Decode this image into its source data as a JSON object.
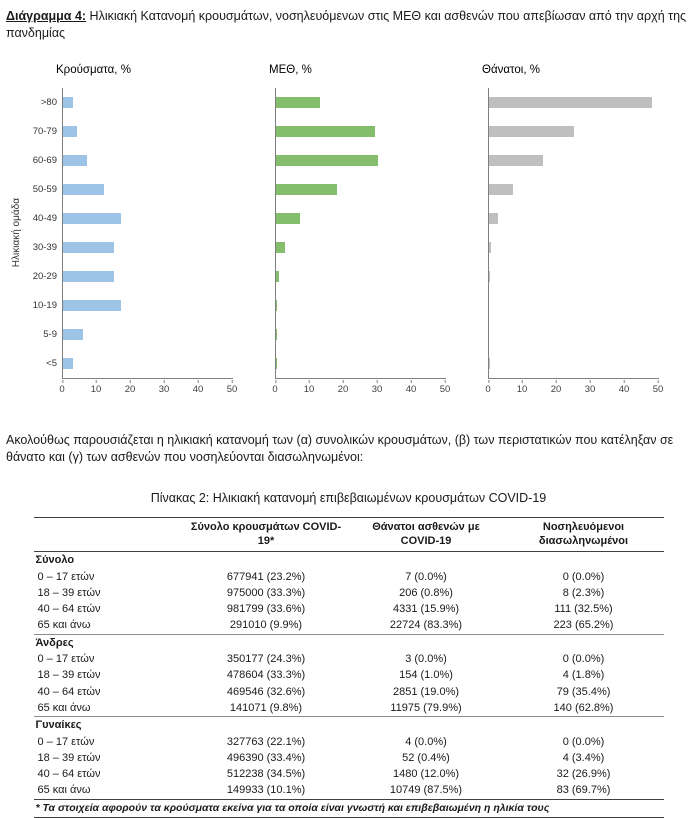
{
  "caption": {
    "label": "Διάγραμμα 4:",
    "text": " Ηλικιακή Κατανομή κρουσμάτων, νοσηλευόμενων στις ΜΕΘ και ασθενών που απεβίωσαν από την αρχή της πανδημίας"
  },
  "charts": {
    "y_axis_label": "Ηλικιακή ομάδα",
    "age_groups": [
      ">80",
      "70-79",
      "60-69",
      "50-59",
      "40-49",
      "30-39",
      "20-29",
      "10-19",
      "5-9",
      "<5"
    ],
    "x_ticks": [
      0,
      10,
      20,
      30,
      40,
      50
    ],
    "xlim": [
      0,
      50
    ]
  },
  "chart_data": [
    {
      "type": "bar",
      "orientation": "horizontal",
      "title": "Κρούσματα, %",
      "color": "#9DC3E6",
      "categories": [
        ">80",
        "70-79",
        "60-69",
        "50-59",
        "40-49",
        "30-39",
        "20-29",
        "10-19",
        "5-9",
        "<5"
      ],
      "values": [
        3,
        4,
        7,
        12,
        17,
        15,
        15,
        17,
        6,
        3
      ],
      "xlabel": "%",
      "ylabel": "Ηλικιακή ομάδα",
      "xlim": [
        0,
        50
      ],
      "grid": false,
      "legend": false
    },
    {
      "type": "bar",
      "orientation": "horizontal",
      "title": "ΜΕΘ, %",
      "color": "#84BE6C",
      "categories": [
        ">80",
        "70-79",
        "60-69",
        "50-59",
        "40-49",
        "30-39",
        "20-29",
        "10-19",
        "5-9",
        "<5"
      ],
      "values": [
        13,
        29,
        30,
        18,
        7,
        2.5,
        1,
        0.4,
        0.2,
        0.4
      ],
      "xlabel": "%",
      "ylabel": "Ηλικιακή ομάδα",
      "xlim": [
        0,
        50
      ],
      "grid": false,
      "legend": false
    },
    {
      "type": "bar",
      "orientation": "horizontal",
      "title": "Θάνατοι, %",
      "color": "#BFBFBF",
      "categories": [
        ">80",
        "70-79",
        "60-69",
        "50-59",
        "40-49",
        "30-39",
        "20-29",
        "10-19",
        "5-9",
        "<5"
      ],
      "values": [
        48,
        25,
        16,
        7,
        2.5,
        0.7,
        0.2,
        0,
        0,
        0.2
      ],
      "xlabel": "%",
      "ylabel": "Ηλικιακή ομάδα",
      "xlim": [
        0,
        50
      ],
      "grid": false,
      "legend": false
    }
  ],
  "paragraph": "Ακολούθως παρουσιάζεται η ηλικιακή κατανομή των (α) συνολικών κρουσμάτων, (β) των περιστατικών που κατέληξαν σε θάνατο και (γ) των ασθενών που νοσηλεύονται διασωληνωμένοι:",
  "table": {
    "title": "Πίνακας 2: Ηλικιακή κατανομή επιβεβαιωμένων κρουσμάτων COVID-19",
    "columns": [
      "Σύνολο κρουσμάτων COVID-19*",
      "Θάνατοι ασθενών με COVID-19",
      "Νοσηλευόμενοι διασωληνωμένοι"
    ],
    "sections": [
      {
        "label": "Σύνολο",
        "rows": [
          {
            "age": "0 – 17 ετών",
            "cases": "677941 (23.2%)",
            "deaths": "7 (0.0%)",
            "intubated": "0 (0.0%)"
          },
          {
            "age": "18 – 39 ετών",
            "cases": "975000 (33.3%)",
            "deaths": "206 (0.8%)",
            "intubated": "8 (2.3%)"
          },
          {
            "age": "40 – 64 ετών",
            "cases": "981799 (33.6%)",
            "deaths": "4331 (15.9%)",
            "intubated": "111 (32.5%)"
          },
          {
            "age": "65 και άνω",
            "cases": "291010 (9.9%)",
            "deaths": "22724 (83.3%)",
            "intubated": "223 (65.2%)"
          }
        ]
      },
      {
        "label": "Άνδρες",
        "rows": [
          {
            "age": "0 – 17 ετών",
            "cases": "350177 (24.3%)",
            "deaths": "3 (0.0%)",
            "intubated": "0 (0.0%)"
          },
          {
            "age": "18 – 39 ετών",
            "cases": "478604 (33.3%)",
            "deaths": "154 (1.0%)",
            "intubated": "4 (1.8%)"
          },
          {
            "age": "40 – 64 ετών",
            "cases": "469546 (32.6%)",
            "deaths": "2851 (19.0%)",
            "intubated": "79 (35.4%)"
          },
          {
            "age": "65 και άνω",
            "cases": "141071 (9.8%)",
            "deaths": "11975 (79.9%)",
            "intubated": "140 (62.8%)"
          }
        ]
      },
      {
        "label": "Γυναίκες",
        "rows": [
          {
            "age": "0 – 17 ετών",
            "cases": "327763 (22.1%)",
            "deaths": "4 (0.0%)",
            "intubated": "0 (0.0%)"
          },
          {
            "age": "18 – 39 ετών",
            "cases": "496390 (33.4%)",
            "deaths": "52 (0.4%)",
            "intubated": "4 (3.4%)"
          },
          {
            "age": "40 – 64 ετών",
            "cases": "512238 (34.5%)",
            "deaths": "1480 (12.0%)",
            "intubated": "32 (26.9%)"
          },
          {
            "age": "65 και άνω",
            "cases": "149933 (10.1%)",
            "deaths": "10749 (87.5%)",
            "intubated": "83 (69.7%)"
          }
        ]
      }
    ],
    "footnote": "* Τα στοιχεία αφορούν τα κρούσματα εκείνα για τα οποία είναι γνωστή και επιβεβαιωμένη η ηλικία τους"
  }
}
